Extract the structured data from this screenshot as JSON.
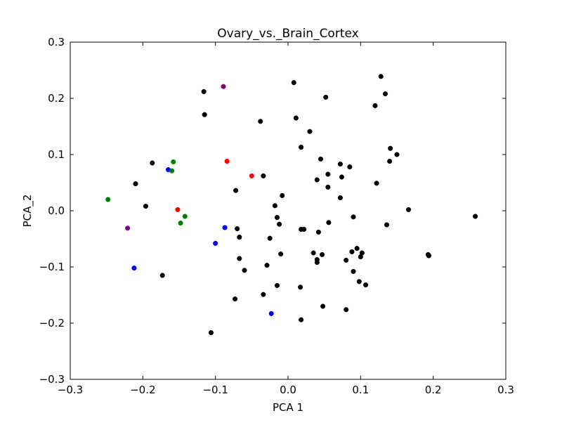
{
  "chart_data": {
    "type": "scatter",
    "title": "Ovary_vs._Brain_Cortex",
    "xlabel": "PCA 1",
    "ylabel": "PCA_2",
    "xlim": [
      -0.3,
      0.3
    ],
    "ylim": [
      -0.3,
      0.3
    ],
    "xticks": [
      -0.3,
      -0.2,
      -0.1,
      0.0,
      0.1,
      0.2,
      0.3
    ],
    "xtick_labels": [
      "−0.3",
      "−0.2",
      "−0.1",
      "0.0",
      "0.1",
      "0.2",
      "0.3"
    ],
    "yticks": [
      -0.3,
      -0.2,
      -0.1,
      0.0,
      0.1,
      0.2,
      0.3
    ],
    "ytick_labels": [
      "−0.3",
      "−0.2",
      "−0.1",
      "0.0",
      "0.1",
      "0.2",
      "0.3"
    ],
    "grid": false,
    "legend": "none",
    "series": [
      {
        "color": "#000000",
        "points": [
          [
            -0.116,
            0.212
          ],
          [
            -0.115,
            0.171
          ],
          [
            -0.187,
            0.085
          ],
          [
            -0.21,
            0.048
          ],
          [
            -0.196,
            0.008
          ],
          [
            -0.173,
            -0.115
          ],
          [
            -0.106,
            -0.217
          ],
          [
            -0.072,
            0.036
          ],
          [
            -0.07,
            -0.032
          ],
          [
            -0.067,
            -0.047
          ],
          [
            -0.067,
            -0.085
          ],
          [
            -0.06,
            -0.106
          ],
          [
            -0.073,
            -0.157
          ],
          [
            -0.038,
            0.159
          ],
          [
            -0.034,
            0.062
          ],
          [
            -0.034,
            -0.149
          ],
          [
            -0.029,
            -0.097
          ],
          [
            -0.025,
            -0.049
          ],
          [
            -0.018,
            0.009
          ],
          [
            -0.015,
            -0.012
          ],
          [
            -0.012,
            -0.024
          ],
          [
            -0.01,
            -0.077
          ],
          [
            -0.008,
            0.027
          ],
          [
            -0.015,
            -0.133
          ],
          [
            0.008,
            0.228
          ],
          [
            0.011,
            0.165
          ],
          [
            0.018,
            0.113
          ],
          [
            0.018,
            -0.033
          ],
          [
            0.022,
            -0.033
          ],
          [
            0.03,
            0.141
          ],
          [
            0.035,
            -0.075
          ],
          [
            0.04,
            0.055
          ],
          [
            0.04,
            -0.087
          ],
          [
            0.04,
            -0.092
          ],
          [
            0.042,
            -0.038
          ],
          [
            0.045,
            0.092
          ],
          [
            0.047,
            -0.078
          ],
          [
            0.048,
            -0.17
          ],
          [
            0.052,
            0.202
          ],
          [
            0.055,
            0.065
          ],
          [
            0.055,
            0.042
          ],
          [
            0.056,
            -0.021
          ],
          [
            0.017,
            -0.136
          ],
          [
            0.018,
            -0.194
          ],
          [
            0.072,
            0.083
          ],
          [
            0.072,
            0.023
          ],
          [
            0.074,
            0.06
          ],
          [
            0.08,
            -0.088
          ],
          [
            0.08,
            -0.176
          ],
          [
            0.085,
            0.078
          ],
          [
            0.088,
            -0.073
          ],
          [
            0.09,
            -0.011
          ],
          [
            0.09,
            -0.108
          ],
          [
            0.095,
            -0.067
          ],
          [
            0.098,
            -0.126
          ],
          [
            0.1,
            -0.082
          ],
          [
            0.102,
            -0.075
          ],
          [
            0.107,
            -0.132
          ],
          [
            0.12,
            0.187
          ],
          [
            0.122,
            0.049
          ],
          [
            0.128,
            0.239
          ],
          [
            0.134,
            0.208
          ],
          [
            0.136,
            -0.025
          ],
          [
            0.14,
            0.088
          ],
          [
            0.141,
            0.111
          ],
          [
            0.15,
            0.1
          ],
          [
            0.166,
            0.002
          ],
          [
            0.193,
            -0.078
          ],
          [
            0.194,
            -0.08
          ],
          [
            0.258,
            -0.01
          ]
        ]
      },
      {
        "color": "#0000ff",
        "points": [
          [
            -0.165,
            0.073
          ],
          [
            -0.212,
            -0.102
          ],
          [
            -0.1,
            -0.058
          ],
          [
            -0.087,
            -0.03
          ],
          [
            -0.023,
            -0.183
          ]
        ]
      },
      {
        "color": "#008000",
        "points": [
          [
            -0.248,
            0.02
          ],
          [
            -0.158,
            0.087
          ],
          [
            -0.16,
            0.071
          ],
          [
            -0.142,
            -0.01
          ],
          [
            -0.148,
            -0.022
          ]
        ]
      },
      {
        "color": "#ff0000",
        "points": [
          [
            -0.084,
            0.088
          ],
          [
            -0.05,
            0.062
          ],
          [
            -0.152,
            0.002
          ]
        ]
      },
      {
        "color": "#800080",
        "points": [
          [
            -0.089,
            0.221
          ],
          [
            -0.221,
            -0.031
          ]
        ]
      }
    ]
  }
}
